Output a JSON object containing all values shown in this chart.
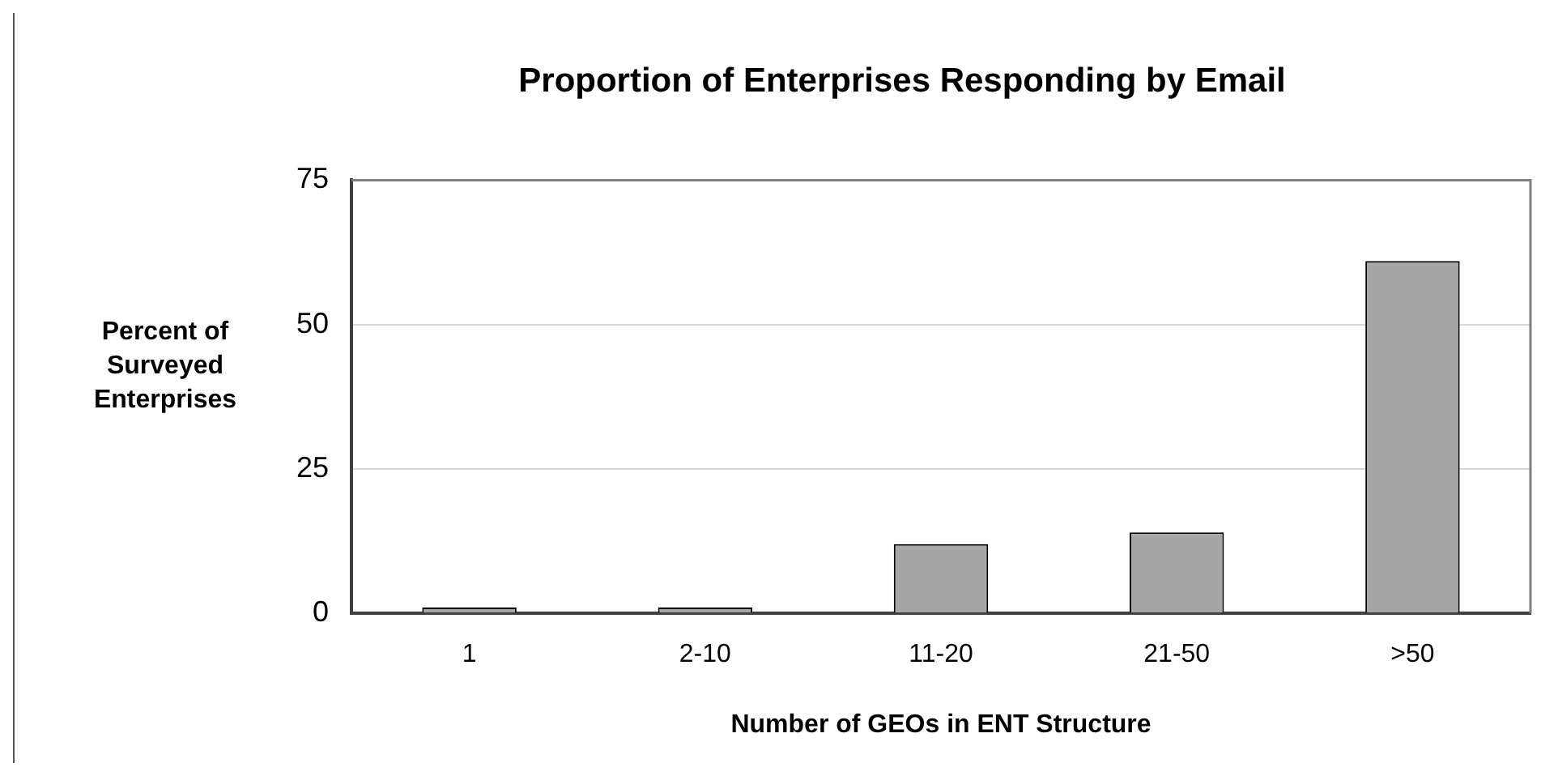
{
  "chart_data": {
    "type": "bar",
    "title": "Proportion of Enterprises Responding by Email",
    "xlabel": "Number of GEOs in ENT Structure",
    "ylabel": "Percent of Surveyed Enterprises",
    "categories": [
      "1",
      "2-10",
      "11-20",
      "21-50",
      ">50"
    ],
    "values": [
      1,
      1,
      12,
      14,
      61
    ],
    "color": "#a6a6a6",
    "ylim": [
      0,
      75
    ],
    "yticks": [
      0,
      25,
      50,
      75
    ],
    "grid": "y"
  }
}
